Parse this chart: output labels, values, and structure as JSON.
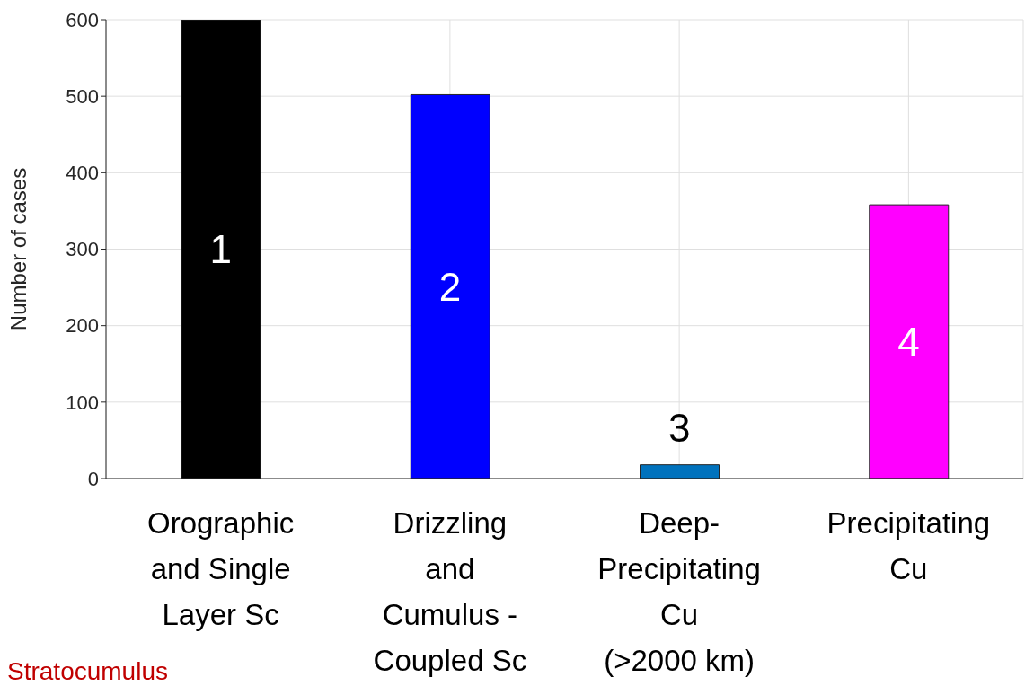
{
  "chart_data": {
    "type": "bar",
    "ylabel": "Number of cases",
    "categories": [
      "Orographic\nand Single\nLayer Sc",
      "Drizzling\nand\nCumulus -\nCoupled Sc",
      "Deep-\nPrecipitating\nCu\n(>2000 km)",
      "Precipitating\nCu"
    ],
    "values": [
      600,
      502,
      18,
      358
    ],
    "colors": [
      "#000000",
      "#0000ff",
      "#0072bd",
      "#ff00ff"
    ],
    "ylim": [
      0,
      600
    ],
    "yticks": [
      0,
      100,
      200,
      300,
      400,
      500,
      600
    ],
    "grid": true,
    "annotations": [
      "1",
      "2",
      "3",
      "4",
      "Stratocumulus"
    ]
  }
}
